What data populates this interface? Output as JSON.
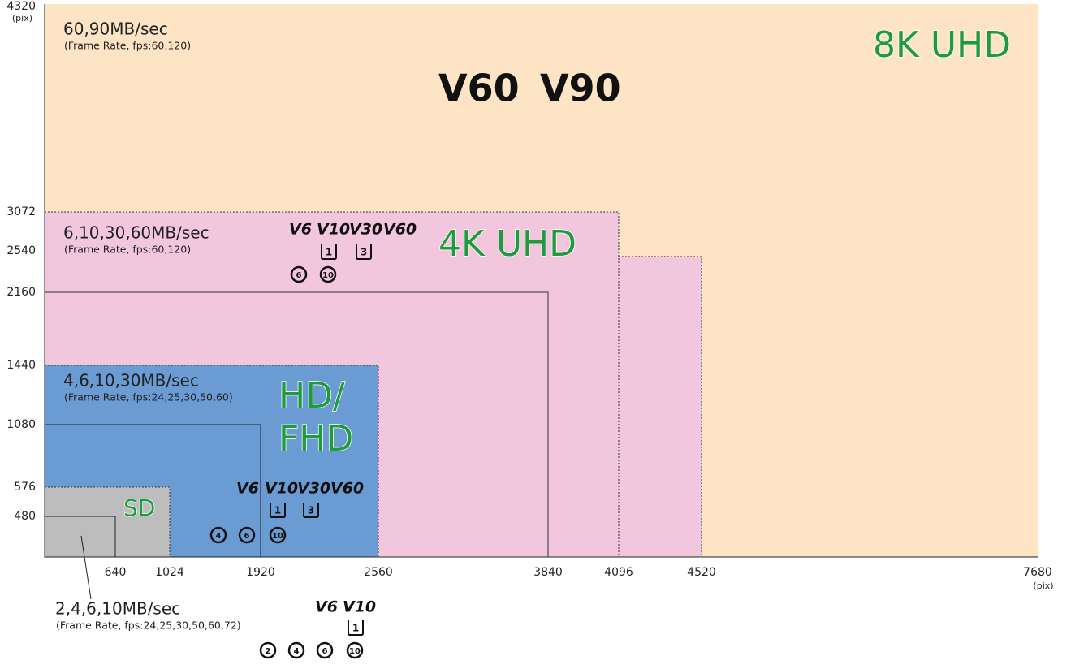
{
  "y_axis": {
    "ticks": [
      "4320",
      "3072",
      "2540",
      "2160",
      "1440",
      "1080",
      "576",
      "480"
    ],
    "unit": "(pix)"
  },
  "x_axis": {
    "ticks": [
      "640",
      "1024",
      "1920",
      "2560",
      "3840",
      "4096",
      "4520",
      "7680"
    ],
    "unit": "(pix)"
  },
  "regions": [
    {
      "label": [
        "8K UHD"
      ],
      "speed": "60,90MB/sec",
      "note": "(Frame Rate, fps:60,120)",
      "video_classes": [
        "V60",
        "V90"
      ]
    },
    {
      "label": [
        "4K UHD"
      ],
      "speed": "6,10,30,60MB/sec",
      "note": "(Frame Rate, fps:60,120)",
      "video_classes": [
        "V6",
        "V10",
        "V30",
        "V60"
      ],
      "uhs_classes": [
        "1",
        "3"
      ],
      "speed_classes": [
        "6",
        "10"
      ]
    },
    {
      "label": [
        "HD/",
        "FHD"
      ],
      "speed": "4,6,10,30MB/sec",
      "note": "(Frame Rate, fps:24,25,30,50,60)",
      "video_classes": [
        "V6",
        "V10",
        "V30",
        "V60"
      ],
      "uhs_classes": [
        "1",
        "3"
      ],
      "speed_classes": [
        "4",
        "6",
        "10"
      ]
    },
    {
      "label": [
        "SD"
      ],
      "speed": "2,4,6,10MB/sec",
      "note": "(Frame Rate, fps:24,25,30,50,60,72)",
      "video_classes": [
        "V6",
        "V10"
      ],
      "uhs_classes": [
        "1"
      ],
      "speed_classes": [
        "2",
        "4",
        "6",
        "10"
      ]
    }
  ]
}
